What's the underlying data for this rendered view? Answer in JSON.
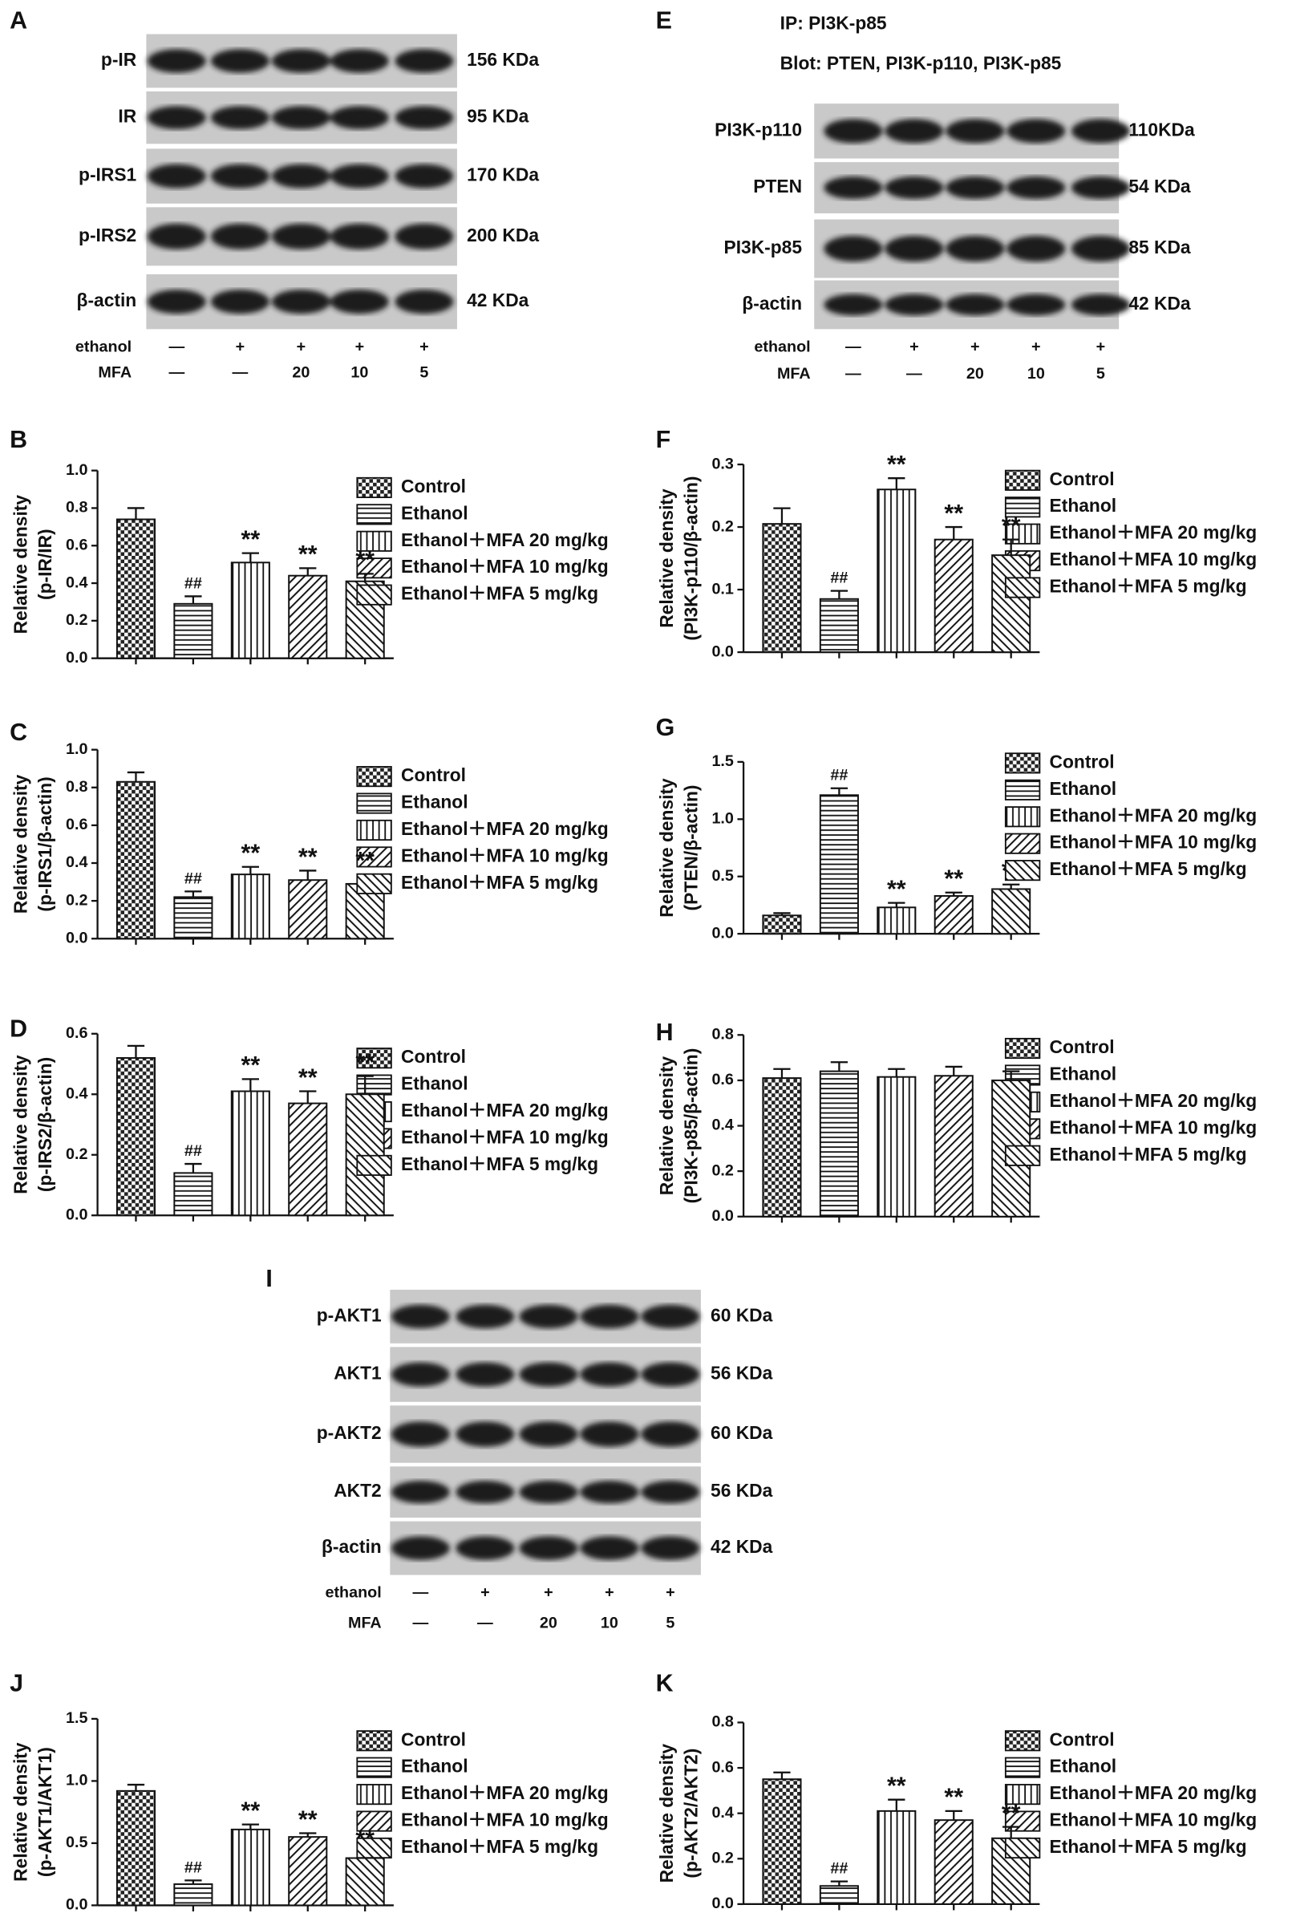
{
  "blots": [
    {
      "letter": "A",
      "rows": [
        {
          "label": "p-IR",
          "size": "156 KDa"
        },
        {
          "label": "IR",
          "size": "95 KDa"
        },
        {
          "label": "p-IRS1",
          "size": "170 KDa"
        },
        {
          "label": "p-IRS2",
          "size": "200 KDa"
        },
        {
          "label": "β-actin",
          "size": "42 KDa"
        }
      ],
      "treatments": [
        {
          "label": "ethanol",
          "marks": [
            "—",
            "+",
            "+",
            "+",
            "+"
          ]
        },
        {
          "label": "MFA",
          "marks": [
            "—",
            "—",
            "20",
            "10",
            "5"
          ]
        }
      ]
    },
    {
      "letter": "E",
      "header": [
        "IP: PI3K-p85",
        "Blot: PTEN, PI3K-p110, PI3K-p85"
      ],
      "rows": [
        {
          "label": "PI3K-p110",
          "size": "110KDa"
        },
        {
          "label": "PTEN",
          "size": "54 KDa"
        },
        {
          "label": "PI3K-p85",
          "size": "85 KDa"
        },
        {
          "label": "β-actin",
          "size": "42 KDa"
        }
      ],
      "treatments": [
        {
          "label": "ethanol",
          "marks": [
            "—",
            "+",
            "+",
            "+",
            "+"
          ]
        },
        {
          "label": "MFA",
          "marks": [
            "—",
            "—",
            "20",
            "10",
            "5"
          ]
        }
      ]
    },
    {
      "letter": "I",
      "rows": [
        {
          "label": "p-AKT1",
          "size": "60 KDa"
        },
        {
          "label": "AKT1",
          "size": "56 KDa"
        },
        {
          "label": "p-AKT2",
          "size": "60 KDa"
        },
        {
          "label": "AKT2",
          "size": "56 KDa"
        },
        {
          "label": "β-actin",
          "size": "42 KDa"
        }
      ],
      "treatments": [
        {
          "label": "ethanol",
          "marks": [
            "—",
            "+",
            "+",
            "+",
            "+"
          ]
        },
        {
          "label": "MFA",
          "marks": [
            "—",
            "—",
            "20",
            "10",
            "5"
          ]
        }
      ]
    }
  ],
  "chart_data": [
    {
      "type": "bar",
      "letter": "B",
      "ylabel": [
        "Relative density",
        "(p-IR/IR)"
      ],
      "ylim": [
        0,
        1
      ],
      "yticks": [
        {
          "value": 0,
          "label": "0.0"
        },
        0.2,
        0.4,
        0.6,
        0.8,
        {
          "value": 1,
          "label": "1.0"
        }
      ],
      "series": [
        {
          "name": "Control",
          "pattern": "checker",
          "values": [
            0.74
          ],
          "errors": [
            0.06
          ]
        },
        {
          "name": "Ethanol",
          "pattern": "horizontal",
          "values": [
            0.29
          ],
          "errors": [
            0.04
          ],
          "annotation": "##"
        },
        {
          "name": "Ethanol＋MFA 20 mg/kg",
          "pattern": "vertical",
          "values": [
            0.51
          ],
          "errors": [
            0.05
          ],
          "annotation": "**"
        },
        {
          "name": "Ethanol＋MFA 10 mg/kg",
          "pattern": "diag-up",
          "values": [
            0.44
          ],
          "errors": [
            0.04
          ],
          "annotation": "**"
        },
        {
          "name": "Ethanol＋MFA 5 mg/kg",
          "pattern": "diag-down",
          "values": [
            0.41
          ],
          "errors": [
            0.04
          ],
          "annotation": "**"
        }
      ]
    },
    {
      "type": "bar",
      "letter": "C",
      "ylabel": [
        "Relative density",
        "(p-IRS1/β-actin)"
      ],
      "ylim": [
        0,
        1
      ],
      "yticks": [
        {
          "value": 0,
          "label": "0.0"
        },
        0.2,
        0.4,
        0.6,
        0.8,
        {
          "value": 1,
          "label": "1.0"
        }
      ],
      "series": [
        {
          "name": "Control",
          "pattern": "checker",
          "values": [
            0.83
          ],
          "errors": [
            0.05
          ]
        },
        {
          "name": "Ethanol",
          "pattern": "horizontal",
          "values": [
            0.22
          ],
          "errors": [
            0.03
          ],
          "annotation": "##"
        },
        {
          "name": "Ethanol＋MFA 20 mg/kg",
          "pattern": "vertical",
          "values": [
            0.34
          ],
          "errors": [
            0.04
          ],
          "annotation": "**"
        },
        {
          "name": "Ethanol＋MFA 10 mg/kg",
          "pattern": "diag-up",
          "values": [
            0.31
          ],
          "errors": [
            0.05
          ],
          "annotation": "**"
        },
        {
          "name": "Ethanol＋MFA 5 mg/kg",
          "pattern": "diag-down",
          "values": [
            0.29
          ],
          "errors": [
            0.05
          ],
          "annotation": "**"
        }
      ]
    },
    {
      "type": "bar",
      "letter": "D",
      "ylabel": [
        "Relative density",
        "(p-IRS2/β-actin)"
      ],
      "ylim": [
        0,
        0.6
      ],
      "yticks": [
        {
          "value": 0,
          "label": "0.0"
        },
        0.2,
        0.4,
        0.6
      ],
      "series": [
        {
          "name": "Control",
          "pattern": "checker",
          "values": [
            0.52
          ],
          "errors": [
            0.04
          ]
        },
        {
          "name": "Ethanol",
          "pattern": "horizontal",
          "values": [
            0.14
          ],
          "errors": [
            0.03
          ],
          "annotation": "##"
        },
        {
          "name": "Ethanol＋MFA 20 mg/kg",
          "pattern": "vertical",
          "values": [
            0.41
          ],
          "errors": [
            0.04
          ],
          "annotation": "**"
        },
        {
          "name": "Ethanol＋MFA 10 mg/kg",
          "pattern": "diag-up",
          "values": [
            0.37
          ],
          "errors": [
            0.04
          ],
          "annotation": "**"
        },
        {
          "name": "Ethanol＋MFA 5 mg/kg",
          "pattern": "diag-down",
          "values": [
            0.4
          ],
          "errors": [
            0.06
          ],
          "annotation": "**"
        }
      ]
    },
    {
      "type": "bar",
      "letter": "F",
      "ylabel": [
        "Relative density",
        "(PI3K-p110/β-actin)"
      ],
      "ylim": [
        0,
        0.3
      ],
      "yticks": [
        {
          "value": 0,
          "label": "0.0"
        },
        0.1,
        0.2,
        0.3
      ],
      "series": [
        {
          "name": "Control",
          "pattern": "checker",
          "values": [
            0.205
          ],
          "errors": [
            0.025
          ]
        },
        {
          "name": "Ethanol",
          "pattern": "horizontal",
          "values": [
            0.085
          ],
          "errors": [
            0.013
          ],
          "annotation": "##"
        },
        {
          "name": "Ethanol＋MFA 20 mg/kg",
          "pattern": "vertical",
          "values": [
            0.26
          ],
          "errors": [
            0.018
          ],
          "annotation": "**"
        },
        {
          "name": "Ethanol＋MFA 10 mg/kg",
          "pattern": "diag-up",
          "values": [
            0.18
          ],
          "errors": [
            0.02
          ],
          "annotation": "**"
        },
        {
          "name": "Ethanol＋MFA 5 mg/kg",
          "pattern": "diag-down",
          "values": [
            0.155
          ],
          "errors": [
            0.025
          ],
          "annotation": "**"
        }
      ]
    },
    {
      "type": "bar",
      "letter": "G",
      "ylabel": [
        "Relative density",
        "(PTEN/β-actin)"
      ],
      "ylim": [
        0,
        1.5
      ],
      "yticks": [
        {
          "value": 0,
          "label": "0.0"
        },
        0.5,
        {
          "value": 1,
          "label": "1.0"
        },
        1.5
      ],
      "series": [
        {
          "name": "Control",
          "pattern": "checker",
          "values": [
            0.16
          ],
          "errors": [
            0.02
          ]
        },
        {
          "name": "Ethanol",
          "pattern": "horizontal",
          "values": [
            1.21
          ],
          "errors": [
            0.06
          ],
          "annotation": "##"
        },
        {
          "name": "Ethanol＋MFA 20 mg/kg",
          "pattern": "vertical",
          "values": [
            0.23
          ],
          "errors": [
            0.04
          ],
          "annotation": "**"
        },
        {
          "name": "Ethanol＋MFA 10 mg/kg",
          "pattern": "diag-up",
          "values": [
            0.33
          ],
          "errors": [
            0.03
          ],
          "annotation": "**"
        },
        {
          "name": "Ethanol＋MFA 5 mg/kg",
          "pattern": "diag-down",
          "values": [
            0.39
          ],
          "errors": [
            0.04
          ],
          "annotation": "**"
        }
      ]
    },
    {
      "type": "bar",
      "letter": "H",
      "ylabel": [
        "Relative density",
        "(PI3K-p85/β-actin)"
      ],
      "ylim": [
        0,
        0.8
      ],
      "yticks": [
        {
          "value": 0,
          "label": "0.0"
        },
        0.2,
        0.4,
        0.6,
        0.8
      ],
      "series": [
        {
          "name": "Control",
          "pattern": "checker",
          "values": [
            0.61
          ],
          "errors": [
            0.04
          ]
        },
        {
          "name": "Ethanol",
          "pattern": "horizontal",
          "values": [
            0.64
          ],
          "errors": [
            0.04
          ]
        },
        {
          "name": "Ethanol＋MFA 20 mg/kg",
          "pattern": "vertical",
          "values": [
            0.615
          ],
          "errors": [
            0.035
          ]
        },
        {
          "name": "Ethanol＋MFA 10 mg/kg",
          "pattern": "diag-up",
          "values": [
            0.62
          ],
          "errors": [
            0.04
          ]
        },
        {
          "name": "Ethanol＋MFA 5 mg/kg",
          "pattern": "diag-down",
          "values": [
            0.6
          ],
          "errors": [
            0.04
          ]
        }
      ]
    },
    {
      "type": "bar",
      "letter": "J",
      "ylabel": [
        "Relative density",
        "(p-AKT1/AKT1)"
      ],
      "ylim": [
        0,
        1.5
      ],
      "yticks": [
        {
          "value": 0,
          "label": "0.0"
        },
        0.5,
        {
          "value": 1,
          "label": "1.0"
        },
        1.5
      ],
      "series": [
        {
          "name": "Control",
          "pattern": "checker",
          "values": [
            0.92
          ],
          "errors": [
            0.05
          ]
        },
        {
          "name": "Ethanol",
          "pattern": "horizontal",
          "values": [
            0.17
          ],
          "errors": [
            0.03
          ],
          "annotation": "##"
        },
        {
          "name": "Ethanol＋MFA 20 mg/kg",
          "pattern": "vertical",
          "values": [
            0.61
          ],
          "errors": [
            0.04
          ],
          "annotation": "**"
        },
        {
          "name": "Ethanol＋MFA 10 mg/kg",
          "pattern": "diag-up",
          "values": [
            0.55
          ],
          "errors": [
            0.03
          ],
          "annotation": "**"
        },
        {
          "name": "Ethanol＋MFA 5 mg/kg",
          "pattern": "diag-down",
          "values": [
            0.38
          ],
          "errors": [
            0.04
          ],
          "annotation": "**"
        }
      ]
    },
    {
      "type": "bar",
      "letter": "K",
      "ylabel": [
        "Relative density",
        "(p-AKT2/AKT2)"
      ],
      "ylim": [
        0,
        0.8
      ],
      "yticks": [
        {
          "value": 0,
          "label": "0.0"
        },
        0.2,
        0.4,
        0.6,
        0.8
      ],
      "series": [
        {
          "name": "Control",
          "pattern": "checker",
          "values": [
            0.55
          ],
          "errors": [
            0.03
          ]
        },
        {
          "name": "Ethanol",
          "pattern": "horizontal",
          "values": [
            0.08
          ],
          "errors": [
            0.02
          ],
          "annotation": "##"
        },
        {
          "name": "Ethanol＋MFA 20 mg/kg",
          "pattern": "vertical",
          "values": [
            0.41
          ],
          "errors": [
            0.05
          ],
          "annotation": "**"
        },
        {
          "name": "Ethanol＋MFA 10 mg/kg",
          "pattern": "diag-up",
          "values": [
            0.37
          ],
          "errors": [
            0.04
          ],
          "annotation": "**"
        },
        {
          "name": "Ethanol＋MFA 5 mg/kg",
          "pattern": "diag-down",
          "values": [
            0.29
          ],
          "errors": [
            0.05
          ],
          "annotation": "**"
        }
      ]
    }
  ]
}
